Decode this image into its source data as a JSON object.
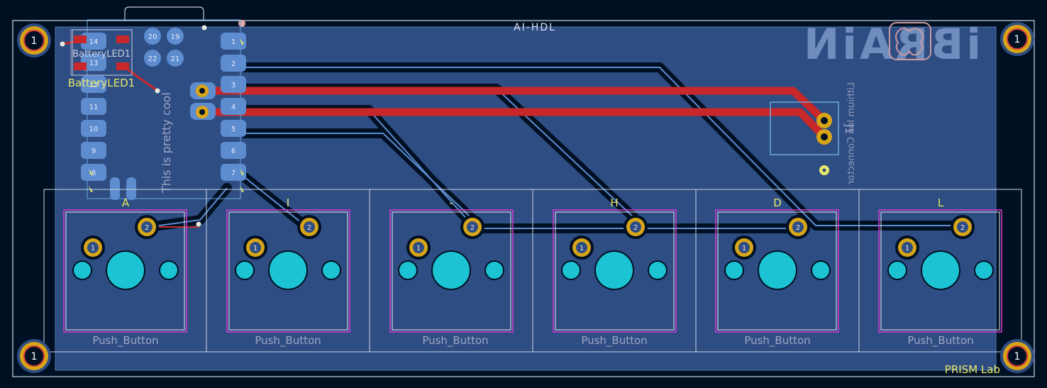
{
  "board": {
    "title": "AI-HDL",
    "lab_label": "PRISM Lab",
    "logo_text": "iBRAiN",
    "vertical_note": "This is pretty cool",
    "mounting_hole_label": "1",
    "colors": {
      "background": "#001023",
      "copper_fill": "#2e4d83",
      "front_trace": "#c8282a",
      "back_trace": "#5d8ccf",
      "pad_gold": "#d8a518",
      "silkscreen": "#e9e96a",
      "fab_text": "#9fa6c6",
      "courtyard": "#d33cd0",
      "hole_cyan": "#1bc3d3"
    }
  },
  "mcu": {
    "left_pins": [
      "14",
      "13",
      "12",
      "11",
      "10",
      "9",
      "8"
    ],
    "right_pins": [
      "1",
      "2",
      "3",
      "4",
      "5",
      "6",
      "7"
    ],
    "top_pins": [
      "20",
      "19",
      "22",
      "21"
    ]
  },
  "battery_led": {
    "ref": "BatteryLED1",
    "fab_ref": "BatteryLED1"
  },
  "connector": {
    "ref": "J1",
    "value": "Lithium Ion Connector"
  },
  "buttons": [
    {
      "label": "A",
      "value": "Push_Button"
    },
    {
      "label": "I",
      "value": "Push_Button"
    },
    {
      "label": "-",
      "value": "Push_Button"
    },
    {
      "label": "H",
      "value": "Push_Button"
    },
    {
      "label": "D",
      "value": "Push_Button"
    },
    {
      "label": "L",
      "value": "Push_Button"
    }
  ],
  "button_pad_numbers": [
    "1",
    "2"
  ]
}
